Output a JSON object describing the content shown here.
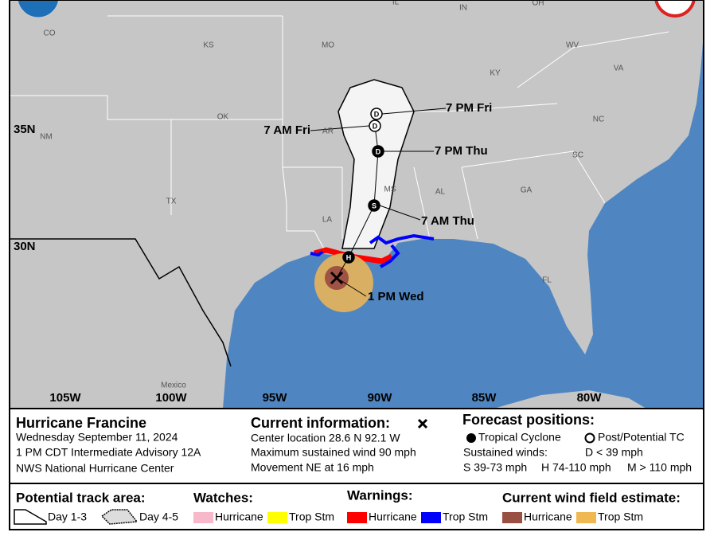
{
  "map": {
    "regions": [
      "CO",
      "KS",
      "MO",
      "IL",
      "IN",
      "OH",
      "WV",
      "KY",
      "VA",
      "OK",
      "AR",
      "NC",
      "SC",
      "GA",
      "AL",
      "MS",
      "LA",
      "TX",
      "NM",
      "FL",
      "Mexico"
    ],
    "latitudes": [
      "35N",
      "30N"
    ],
    "longitudes": [
      "105W",
      "100W",
      "95W",
      "90W",
      "85W",
      "80W"
    ],
    "forecast_symbols": [
      "D",
      "D",
      "D",
      "S",
      "H"
    ],
    "forecast_times": [
      "7 PM Fri",
      "7 AM Fri",
      "7 PM Thu",
      "7 AM Thu"
    ],
    "current_time": "1 PM Wed"
  },
  "legend": {
    "storm": {
      "name": "Hurricane Francine",
      "date": "Wednesday September 11, 2024",
      "advisory": "1 PM CDT Intermediate Advisory 12A",
      "agency": "NWS National Hurricane Center"
    },
    "current": {
      "title": "Current information:",
      "location": "Center location 28.6 N 92.1 W",
      "wind": "Maximum sustained wind 90 mph",
      "movement": "Movement NE at 16 mph"
    },
    "forecast": {
      "title": "Forecast positions:",
      "tropical": "Tropical Cyclone",
      "post": "Post/Potential TC",
      "winds_label": "Sustained winds:",
      "d": "D < 39 mph",
      "s": "S 39-73 mph",
      "h": "H 74-110 mph",
      "m": "M > 110 mph"
    },
    "track": {
      "title": "Potential track area:",
      "day13": "Day 1-3",
      "day45": "Day 4-5"
    },
    "watches": {
      "title": "Watches:",
      "items": [
        "Hurricane",
        "Trop Stm"
      ]
    },
    "warnings": {
      "title": "Warnings:",
      "items": [
        "Hurricane",
        "Trop Stm"
      ]
    },
    "wind_field": {
      "title": "Current wind field estimate:",
      "items": [
        "Hurricane",
        "Trop Stm"
      ]
    }
  }
}
